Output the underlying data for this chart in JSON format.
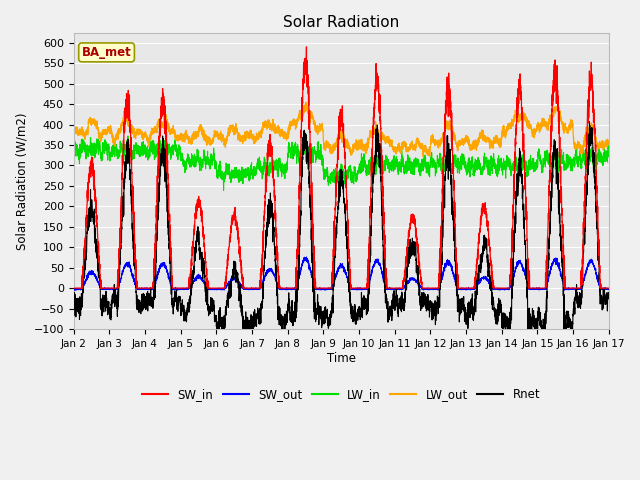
{
  "title": "Solar Radiation",
  "ylabel": "Solar Radiation (W/m2)",
  "xlabel": "Time",
  "annotation": "BA_met",
  "ylim": [
    -100,
    625
  ],
  "yticks": [
    -100,
    -50,
    0,
    50,
    100,
    150,
    200,
    250,
    300,
    350,
    400,
    450,
    500,
    550,
    600
  ],
  "xtick_labels": [
    "Jan 2",
    "Jan 3",
    "Jan 4",
    "Jan 5",
    "Jan 6",
    "Jan 7",
    "Jan 8",
    "Jan 9",
    "Jan 10",
    "Jan 11",
    "Jan 12",
    "Jan 13",
    "Jan 14",
    "Jan 15",
    "Jan 16",
    "Jan 17"
  ],
  "colors": {
    "SW_in": "#ff0000",
    "SW_out": "#0000ff",
    "LW_in": "#00dd00",
    "LW_out": "#ffa500",
    "Rnet": "#000000"
  },
  "fig_bg": "#f0f0f0",
  "plot_bg": "#e8e8e8",
  "grid_color": "#ffffff",
  "n_points": 4320,
  "days": 15
}
